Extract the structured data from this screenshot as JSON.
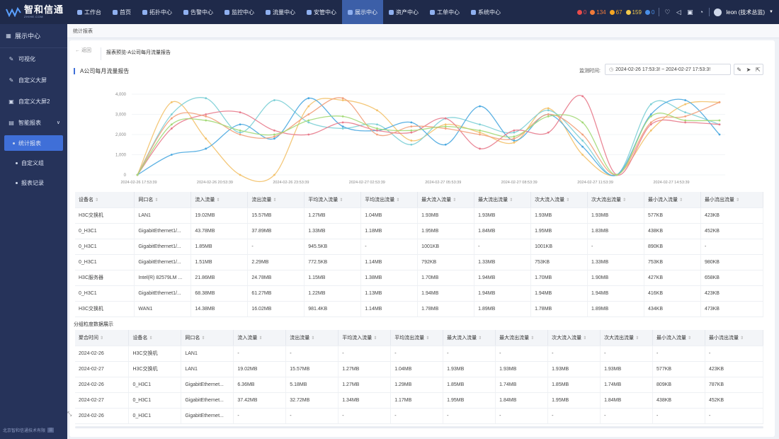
{
  "brand": {
    "name": "智和信通",
    "sub": "ZHIHE.COM"
  },
  "nav": [
    {
      "label": "工作台",
      "active": false
    },
    {
      "label": "首页",
      "active": false
    },
    {
      "label": "拓扑中心",
      "active": false
    },
    {
      "label": "告警中心",
      "active": false
    },
    {
      "label": "监控中心",
      "active": false
    },
    {
      "label": "流量中心",
      "active": false
    },
    {
      "label": "安管中心",
      "active": false
    },
    {
      "label": "展示中心",
      "active": true
    },
    {
      "label": "资产中心",
      "active": false
    },
    {
      "label": "工单中心",
      "active": false
    },
    {
      "label": "系统中心",
      "active": false
    }
  ],
  "alerts": [
    {
      "count": "0",
      "color": "#e84b4b"
    },
    {
      "count": "134",
      "color": "#f07a3a"
    },
    {
      "count": "67",
      "color": "#f5a623"
    },
    {
      "count": "159",
      "color": "#f2c94c"
    },
    {
      "count": "0",
      "color": "#4a8fe7"
    }
  ],
  "user": {
    "label": "leon (技术总监)"
  },
  "sidebar": {
    "head": "展示中心",
    "items": [
      {
        "label": "可视化",
        "icon": "edit-icon"
      },
      {
        "label": "自定义大屏",
        "icon": "edit-icon"
      },
      {
        "label": "自定义大屏2",
        "icon": "screen-icon"
      },
      {
        "label": "智能报表",
        "icon": "report-icon"
      }
    ],
    "subs": [
      {
        "label": "统计报表",
        "active": true
      },
      {
        "label": "自定义组",
        "active": false
      },
      {
        "label": "报表记录",
        "active": false
      }
    ],
    "footer": "北京智和信通技术有限"
  },
  "crumb": "统计报表",
  "page": {
    "back": "← 返回",
    "preview_title": "报表预览-A公司每月流量报告",
    "report_title": "A公司每月流量报告",
    "time_label": "监测时间:",
    "time_value": "2024-02-26 17:53:3! ~ 2024-02-27 17:53:3!",
    "section2": "分组粒度数据展示"
  },
  "chart_data": {
    "type": "line",
    "ylim": [
      0,
      4000
    ],
    "yticks": [
      "0",
      "1,000",
      "2,000",
      "3,000",
      "4,000"
    ],
    "xticks": [
      "2024-02-26 17:53:39",
      "2024-02-26 20:53:39",
      "2024-02-26 23:53:39",
      "2024-02-27 02:53:39",
      "2024-02-27 05:53:39",
      "2024-02-27 08:53:39",
      "2024-02-27 11:53:39",
      "2024-02-27 14:53:39"
    ],
    "series": [
      {
        "color": "#f3c26b",
        "values": [
          0,
          3600,
          1800,
          0,
          0,
          3400,
          3700,
          3200,
          1700,
          2500,
          2100,
          1600,
          3300,
          1000,
          0,
          2200,
          3500,
          3600
        ]
      },
      {
        "color": "#7ccfd6",
        "values": [
          0,
          3000,
          3800,
          2100,
          3700,
          2600,
          2300,
          2500,
          1500,
          2800,
          2500,
          2100,
          3200,
          1700,
          0,
          3500,
          3100,
          2500
        ]
      },
      {
        "color": "#4aa8e0",
        "values": [
          0,
          1000,
          1300,
          2500,
          1800,
          3800,
          2400,
          2200,
          2600,
          1500,
          3400,
          1700,
          3000,
          1400,
          0,
          3000,
          3700,
          2000
        ]
      },
      {
        "color": "#e87b8c",
        "values": [
          0,
          2300,
          3000,
          3100,
          2200,
          2000,
          2600,
          2200,
          2100,
          2800,
          1300,
          2200,
          2100,
          3900,
          0,
          2500,
          2600,
          2500
        ]
      },
      {
        "color": "#f2a07b",
        "values": [
          0,
          2800,
          2900,
          2000,
          1900,
          3000,
          3800,
          2000,
          2400,
          2300,
          2000,
          1800,
          3000,
          2000,
          0,
          2600,
          2900,
          3600
        ]
      },
      {
        "color": "#a3d977",
        "values": [
          0,
          2500,
          2700,
          2200,
          2000,
          2700,
          2900,
          2300,
          2200,
          2400,
          2200,
          1900,
          2900,
          2600,
          0,
          2900,
          2700,
          2700
        ]
      }
    ]
  },
  "table1": {
    "headers": [
      "设备名",
      "网口名",
      "流入流量",
      "流出流量",
      "平均流入流量",
      "平均流出流量",
      "最大流入流量",
      "最大流出流量",
      "次大流入流量",
      "次大流出流量",
      "最小流入流量",
      "最小流出流量"
    ],
    "rows": [
      [
        "H3C交换机",
        "LAN1",
        "19.02MB",
        "15.57MB",
        "1.27MB",
        "1.04MB",
        "1.93MB",
        "1.93MB",
        "1.93MB",
        "1.93MB",
        "577KB",
        "423KB"
      ],
      [
        "0_H3C1",
        "GigabitEthernet1/...",
        "43.78MB",
        "37.89MB",
        "1.33MB",
        "1.18MB",
        "1.95MB",
        "1.84MB",
        "1.95MB",
        "1.83MB",
        "438KB",
        "452KB"
      ],
      [
        "0_H3C1",
        "GigabitEthernet1/...",
        "1.85MB",
        "-",
        "945.5KB",
        "-",
        "1001KB",
        "-",
        "1001KB",
        "-",
        "890KB",
        "-"
      ],
      [
        "0_H3C1",
        "GigabitEthernet1/...",
        "1.51MB",
        "2.29MB",
        "772.5KB",
        "1.14MB",
        "792KB",
        "1.33MB",
        "753KB",
        "1.33MB",
        "753KB",
        "980KB"
      ],
      [
        "H3C服务器",
        "Intel(R) 82579LM ...",
        "21.86MB",
        "24.78MB",
        "1.15MB",
        "1.38MB",
        "1.70MB",
        "1.94MB",
        "1.70MB",
        "1.90MB",
        "427KB",
        "658KB"
      ],
      [
        "0_H3C1",
        "GigabitEthernet1/...",
        "68.38MB",
        "61.27MB",
        "1.22MB",
        "1.13MB",
        "1.94MB",
        "1.94MB",
        "1.94MB",
        "1.94MB",
        "416KB",
        "423KB"
      ],
      [
        "H3C交换机",
        "WAN1",
        "14.38MB",
        "16.02MB",
        "981.4KB",
        "1.14MB",
        "1.78MB",
        "1.89MB",
        "1.78MB",
        "1.89MB",
        "434KB",
        "473KB"
      ]
    ]
  },
  "table2": {
    "headers": [
      "聚合时间",
      "设备名",
      "网口名",
      "流入流量",
      "流出流量",
      "平均流入流量",
      "平均流出流量",
      "最大流入流量",
      "最大流出流量",
      "次大流入流量",
      "次大流出流量",
      "最小流入流量",
      "最小流出流量"
    ],
    "rows": [
      [
        "2024-02-26",
        "H3C交换机",
        "LAN1",
        "-",
        "-",
        "-",
        "-",
        "-",
        "-",
        "-",
        "-",
        "-",
        "-"
      ],
      [
        "2024-02-27",
        "H3C交换机",
        "LAN1",
        "19.02MB",
        "15.57MB",
        "1.27MB",
        "1.04MB",
        "1.93MB",
        "1.93MB",
        "1.93MB",
        "1.93MB",
        "577KB",
        "423KB"
      ],
      [
        "2024-02-26",
        "0_H3C1",
        "GigabitEthernet...",
        "6.36MB",
        "5.18MB",
        "1.27MB",
        "1.29MB",
        "1.85MB",
        "1.74MB",
        "1.85MB",
        "1.74MB",
        "809KB",
        "787KB"
      ],
      [
        "2024-02-27",
        "0_H3C1",
        "GigabitEthernet...",
        "37.42MB",
        "32.72MB",
        "1.34MB",
        "1.17MB",
        "1.95MB",
        "1.84MB",
        "1.95MB",
        "1.84MB",
        "438KB",
        "452KB"
      ],
      [
        "2024-02-26",
        "0_H3C1",
        "GigabitEthernet...",
        "-",
        "-",
        "-",
        "-",
        "-",
        "-",
        "-",
        "-",
        "-",
        "-"
      ]
    ]
  }
}
